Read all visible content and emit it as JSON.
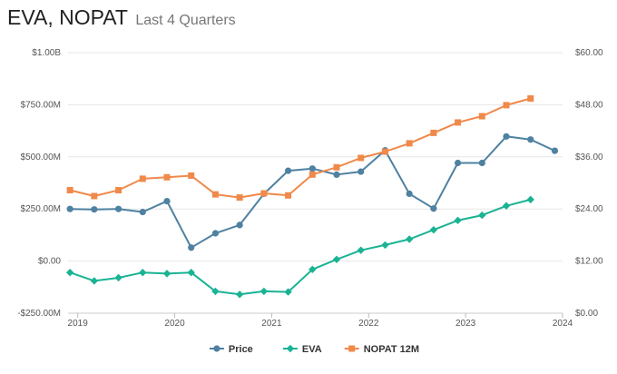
{
  "header": {
    "title": "EVA, NOPAT",
    "subtitle": "Last 4 Quarters"
  },
  "chart_data": {
    "type": "line",
    "title": "EVA, NOPAT",
    "subtitle": "Last 4 Quarters",
    "x_ticks": [
      "2019",
      "2020",
      "2021",
      "2022",
      "2023",
      "2024"
    ],
    "x_range": [
      2018.9,
      2024.0
    ],
    "left_axis": {
      "ticks": [
        "$1.00B",
        "$750.00M",
        "$500.00M",
        "$250.00M",
        "$0.00",
        "-$250.00M"
      ],
      "range_millions": [
        -250,
        1000
      ]
    },
    "right_axis": {
      "ticks": [
        "$60.00",
        "$48.00",
        "$36.00",
        "$24.00",
        "$12.00",
        "$0.00"
      ],
      "range": [
        0,
        60
      ]
    },
    "grid": true,
    "legend_position": "bottom",
    "series": [
      {
        "name": "Price",
        "axis": "right",
        "color": "#4f81a0",
        "marker": "circle",
        "x": [
          2018.92,
          2019.17,
          2019.42,
          2019.67,
          2019.92,
          2020.17,
          2020.42,
          2020.67,
          2020.92,
          2021.17,
          2021.42,
          2021.67,
          2021.92,
          2022.17,
          2022.42,
          2022.67,
          2022.92,
          2023.17,
          2023.42,
          2023.67,
          2023.92
        ],
        "values": [
          24.0,
          23.9,
          24.0,
          23.3,
          25.8,
          15.1,
          18.4,
          20.3,
          27.5,
          32.8,
          33.3,
          31.9,
          32.6,
          37.5,
          27.5,
          24.1,
          34.6,
          34.6,
          40.7,
          40.0,
          37.4
        ]
      },
      {
        "name": "EVA",
        "axis": "left",
        "color": "#1ab394",
        "marker": "diamond",
        "x": [
          2018.92,
          2019.17,
          2019.42,
          2019.67,
          2019.92,
          2020.17,
          2020.42,
          2020.67,
          2020.92,
          2021.17,
          2021.42,
          2021.67,
          2021.92,
          2022.17,
          2022.42,
          2022.67,
          2022.92,
          2023.17,
          2023.42,
          2023.67
        ],
        "values": [
          -55,
          -95,
          -80,
          -55,
          -60,
          -55,
          -145,
          -160,
          -145,
          -148,
          -40,
          8,
          52,
          77,
          105,
          150,
          195,
          220,
          265,
          295
        ]
      },
      {
        "name": "NOPAT 12M",
        "axis": "left",
        "color": "#f0894a",
        "marker": "square",
        "x": [
          2018.92,
          2019.17,
          2019.42,
          2019.67,
          2019.92,
          2020.17,
          2020.42,
          2020.67,
          2020.92,
          2021.17,
          2021.42,
          2021.67,
          2021.92,
          2022.17,
          2022.42,
          2022.67,
          2022.92,
          2023.17,
          2023.42,
          2023.67
        ],
        "values": [
          340,
          312,
          340,
          395,
          402,
          410,
          320,
          305,
          325,
          315,
          415,
          450,
          495,
          525,
          565,
          615,
          665,
          695,
          748,
          780
        ]
      }
    ]
  }
}
